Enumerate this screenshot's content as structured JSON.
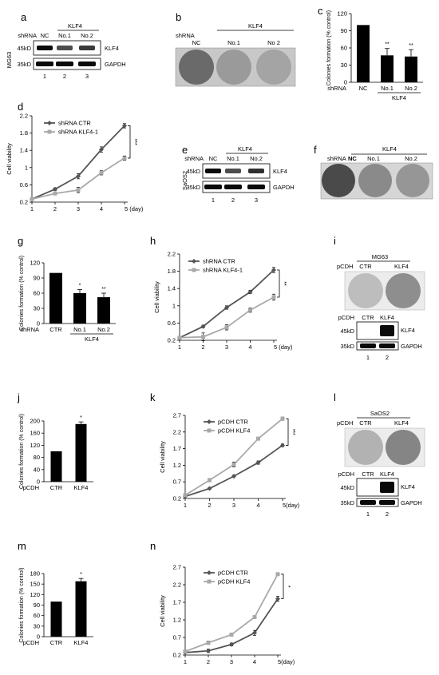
{
  "panels": {
    "a": {
      "letter": "a",
      "side": "MG63",
      "row": "shRNA",
      "cols": [
        "NC",
        "No.1",
        "No.2"
      ],
      "group": "KLF4",
      "mw": [
        "45kD",
        "35kD"
      ],
      "bands": [
        "KLF4",
        "GAPDH"
      ],
      "lanes": [
        "1",
        "2",
        "3"
      ],
      "band_intensity": [
        [
          1.0,
          0.65,
          0.75
        ],
        [
          1.0,
          1.0,
          1.0
        ]
      ]
    },
    "b": {
      "letter": "b",
      "row": "shRNA",
      "cols": [
        "NC",
        "No.1",
        "No 2"
      ],
      "group": "KLF4"
    },
    "c": {
      "letter": "c",
      "row": "shRNA",
      "group": "KLF4",
      "chart_data": {
        "type": "bar",
        "categories": [
          "NC",
          "No.1",
          "No.2"
        ],
        "values": [
          100,
          47,
          45
        ],
        "errors": [
          0,
          12,
          12
        ],
        "sig": [
          "",
          "**",
          "**"
        ],
        "ylabel": "Colonies formation (% control)",
        "ylim": [
          0,
          120
        ],
        "yticks": [
          "0",
          "30",
          "60",
          "90",
          "120"
        ]
      }
    },
    "d": {
      "letter": "d",
      "chart_data": {
        "type": "line",
        "x": [
          1,
          2,
          3,
          4,
          5
        ],
        "xticks": [
          "1",
          "2",
          "3",
          "4",
          "5 (day)"
        ],
        "ylabel": "Cell viability",
        "ylim": [
          0.2,
          2.2
        ],
        "yticks": [
          "0.2",
          "0.6",
          "1",
          "1.4",
          "1.8",
          "2.2"
        ],
        "series": [
          {
            "name": "shRNA CTR",
            "values": [
              0.27,
              0.5,
              0.8,
              1.42,
              1.97
            ],
            "errors": [
              0.02,
              0.03,
              0.06,
              0.06,
              0.05
            ],
            "color": "#555555",
            "marker": "diamond"
          },
          {
            "name": "shRNA KLF4-1",
            "values": [
              0.27,
              0.4,
              0.48,
              0.88,
              1.22
            ],
            "errors": [
              0.02,
              0.03,
              0.06,
              0.05,
              0.05
            ],
            "color": "#a9a9a9",
            "marker": "square"
          }
        ],
        "sig": "***"
      }
    },
    "e": {
      "letter": "e",
      "side": "SaOS2",
      "row": "shRNA",
      "cols": [
        "NC",
        "No.1",
        "No.2"
      ],
      "group": "KLF4",
      "mw": [
        "45kD",
        "35kD"
      ],
      "bands": [
        "KLF4",
        "GAPDH"
      ],
      "lanes": [
        "1",
        "2",
        "3"
      ],
      "band_intensity": [
        [
          1.0,
          0.65,
          0.8
        ],
        [
          1.0,
          1.0,
          1.0
        ]
      ]
    },
    "f": {
      "letter": "f",
      "row": "shRNA",
      "cols": [
        "NC",
        "No.1",
        "No.2"
      ],
      "group": "KLF4"
    },
    "g": {
      "letter": "g",
      "row": "shRNA",
      "group": "KLF4",
      "chart_data": {
        "type": "bar",
        "categories": [
          "CTR",
          "No.1",
          "No.2"
        ],
        "values": [
          100,
          60,
          52
        ],
        "errors": [
          0,
          7,
          8
        ],
        "sig": [
          "",
          "*",
          "**"
        ],
        "ylabel": "Colonies formation (% control)",
        "ylim": [
          0,
          120
        ],
        "yticks": [
          "0",
          "30",
          "60",
          "90",
          "120"
        ]
      }
    },
    "h": {
      "letter": "h",
      "chart_data": {
        "type": "line",
        "x": [
          1,
          2,
          3,
          4,
          5
        ],
        "xticks": [
          "1",
          "2",
          "3",
          "4",
          "5 (day)"
        ],
        "ylabel": "Cell viability",
        "ylim": [
          0.2,
          2.2
        ],
        "yticks": [
          "0.2",
          "0.6",
          "1",
          "1.4",
          "1.8",
          "2.2"
        ],
        "series": [
          {
            "name": "shRNA CTR",
            "values": [
              0.26,
              0.52,
              0.96,
              1.32,
              1.83
            ],
            "errors": [
              0.02,
              0.03,
              0.04,
              0.04,
              0.06
            ],
            "color": "#555555",
            "marker": "diamond"
          },
          {
            "name": "shRNA KLF4-1",
            "values": [
              0.26,
              0.28,
              0.5,
              0.9,
              1.2
            ],
            "errors": [
              0.02,
              0.09,
              0.06,
              0.05,
              0.07
            ],
            "color": "#a9a9a9",
            "marker": "square"
          }
        ],
        "sig": "**"
      }
    },
    "i": {
      "letter": "i",
      "cell": "MG63",
      "row": "pCDH",
      "cols": [
        "CTR",
        "KLF4"
      ],
      "mw": [
        "45kD",
        "35kD"
      ],
      "bands": [
        "KLF4",
        "GAPDH"
      ],
      "lanes": [
        "1",
        "2"
      ],
      "band_intensity": [
        [
          0.0,
          1.0
        ],
        [
          1.0,
          1.0
        ]
      ]
    },
    "j": {
      "letter": "j",
      "row": "pCDH",
      "chart_data": {
        "type": "bar",
        "categories": [
          "CTR",
          "KLF4"
        ],
        "values": [
          100,
          190
        ],
        "errors": [
          0,
          7
        ],
        "sig": [
          "",
          "*"
        ],
        "ylabel": "Colonies formation (% control)",
        "ylim": [
          0,
          200
        ],
        "yticks": [
          "0",
          "40",
          "80",
          "120",
          "160",
          "200"
        ]
      }
    },
    "k": {
      "letter": "k",
      "chart_data": {
        "type": "line",
        "x": [
          1,
          2,
          3,
          4,
          5
        ],
        "xticks": [
          "1",
          "2",
          "3",
          "4",
          "5(day)"
        ],
        "ylabel": "Cell viability",
        "ylim": [
          0.2,
          2.7
        ],
        "yticks": [
          "0.2",
          "0.7",
          "1.2",
          "1.7",
          "2.2",
          "2.7"
        ],
        "series": [
          {
            "name": "pCDH CTR",
            "values": [
              0.26,
              0.5,
              0.87,
              1.28,
              1.8
            ],
            "errors": [
              0.02,
              0.03,
              0.03,
              0.05,
              0.04
            ],
            "color": "#555555",
            "marker": "diamond"
          },
          {
            "name": "pCDH KLF4",
            "values": [
              0.3,
              0.75,
              1.22,
              2.0,
              2.6
            ],
            "errors": [
              0.03,
              0.05,
              0.07,
              0.03,
              0.05
            ],
            "color": "#a9a9a9",
            "marker": "square"
          }
        ],
        "sig": "***"
      }
    },
    "l": {
      "letter": "l",
      "cell": "SaOS2",
      "row": "pCDH",
      "cols": [
        "CTR",
        "KLF4"
      ],
      "mw": [
        "45kD",
        "35kD"
      ],
      "bands": [
        "KLF4",
        "GAPDH"
      ],
      "lanes": [
        "1",
        "2"
      ],
      "band_intensity": [
        [
          0.0,
          1.0
        ],
        [
          1.0,
          1.0
        ]
      ]
    },
    "m": {
      "letter": "m",
      "row": "pCDH",
      "chart_data": {
        "type": "bar",
        "categories": [
          "CTR",
          "KLF4"
        ],
        "values": [
          100,
          158
        ],
        "errors": [
          0,
          8
        ],
        "sig": [
          "",
          "*"
        ],
        "ylabel": "Colonies formation (% control)",
        "ylim": [
          0,
          180
        ],
        "yticks": [
          "0",
          "30",
          "60",
          "90",
          "120",
          "150",
          "180"
        ]
      }
    },
    "n": {
      "letter": "n",
      "chart_data": {
        "type": "line",
        "x": [
          1,
          2,
          3,
          4,
          5
        ],
        "xticks": [
          "1",
          "2",
          "3",
          "4",
          "5(day)"
        ],
        "ylabel": "Cell viability",
        "ylim": [
          0.2,
          2.7
        ],
        "yticks": [
          "0.2",
          "0.7",
          "1.2",
          "1.7",
          "2.2",
          "2.7"
        ],
        "series": [
          {
            "name": "pCDH CTR",
            "values": [
              0.27,
              0.32,
              0.5,
              0.83,
              1.8
            ],
            "errors": [
              0.02,
              0.05,
              0.04,
              0.07,
              0.07
            ],
            "color": "#555555",
            "marker": "diamond"
          },
          {
            "name": "pCDH KLF4",
            "values": [
              0.3,
              0.55,
              0.78,
              1.28,
              2.5
            ],
            "errors": [
              0.03,
              0.05,
              0.03,
              0.04,
              0.04
            ],
            "color": "#a9a9a9",
            "marker": "square"
          }
        ],
        "sig": "*"
      }
    }
  }
}
